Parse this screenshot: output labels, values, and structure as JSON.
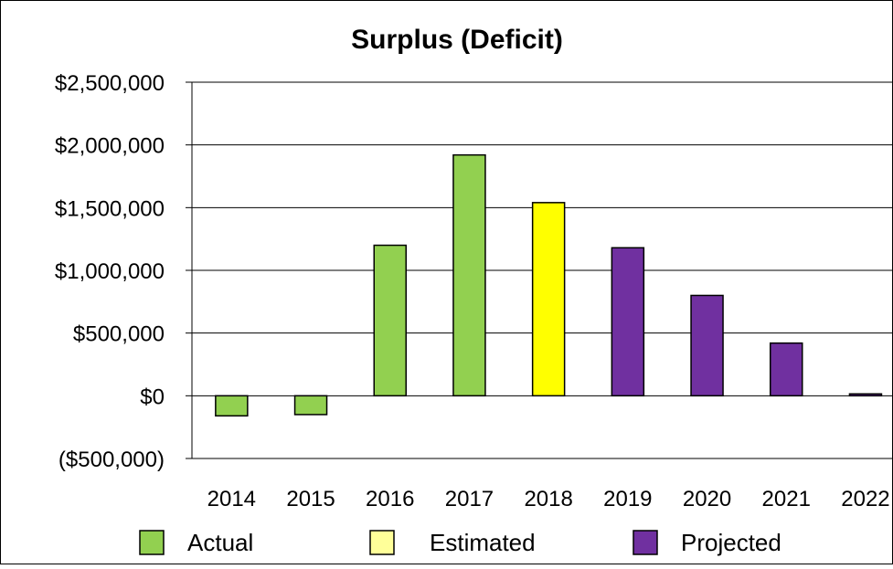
{
  "chart_data": {
    "type": "bar",
    "title": "Surplus (Deficit)",
    "xlabel": "",
    "ylabel": "",
    "categories": [
      "2014",
      "2015",
      "2016",
      "2017",
      "2018",
      "2019",
      "2020",
      "2021",
      "2022"
    ],
    "values": [
      -160000,
      -150000,
      1200000,
      1920000,
      1540000,
      1180000,
      800000,
      420000,
      15000
    ],
    "bar_group": [
      "Actual",
      "Actual",
      "Actual",
      "Actual",
      "Estimated",
      "Projected",
      "Projected",
      "Projected",
      "Projected"
    ],
    "ylim": [
      -500000,
      2500000
    ],
    "yticks": [
      -500000,
      0,
      500000,
      1000000,
      1500000,
      2000000,
      2500000
    ],
    "ytick_labels": [
      "($500,000)",
      "$0",
      "$500,000",
      "$1,000,000",
      "$1,500,000",
      "$2,000,000",
      "$2,500,000"
    ],
    "grid": true,
    "legend_position": "bottom",
    "legend": [
      {
        "name": "Actual",
        "color": "#92d050"
      },
      {
        "name": "Estimated",
        "color": "#ffff00"
      },
      {
        "name": "Projected",
        "color": "#7030a0"
      }
    ],
    "legend_swatch_colors": {
      "Actual": "#92d050",
      "Estimated": "#ffff99",
      "Projected": "#7030a0"
    }
  }
}
